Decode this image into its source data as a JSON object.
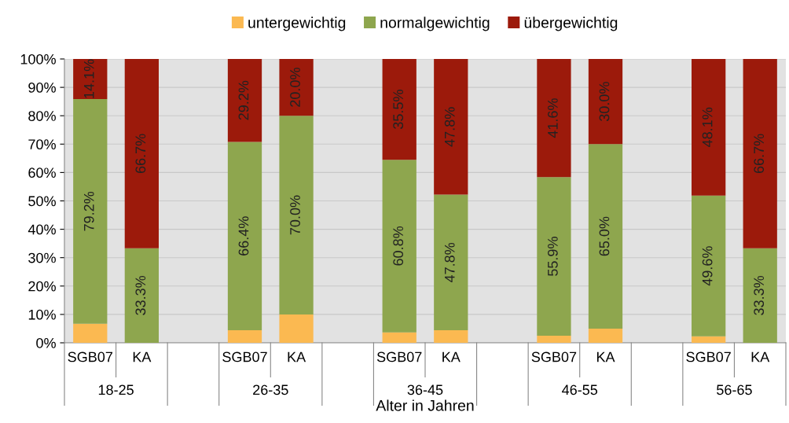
{
  "chart_data": {
    "type": "bar",
    "stacked": true,
    "xlabel": "Alter in Jahren",
    "categories": [
      "SGB07",
      "KA",
      null,
      "SGB07",
      "KA",
      null,
      "SGB07",
      "KA",
      null,
      "SGB07",
      "KA",
      null,
      "SGB07",
      "KA"
    ],
    "series": [
      {
        "name": "untergewichtig",
        "color": "#fbb951",
        "values": [
          6.7,
          0,
          null,
          4.4,
          10.0,
          null,
          3.7,
          4.4,
          null,
          2.5,
          5.0,
          null,
          2.3,
          0
        ],
        "value_labels": [
          null,
          null,
          null,
          null,
          null,
          null,
          null,
          null,
          null,
          null,
          null,
          null,
          null,
          null
        ]
      },
      {
        "name": "normalgewichtig",
        "color": "#8ea64e",
        "values": [
          79.2,
          33.3,
          null,
          66.4,
          70.0,
          null,
          60.8,
          47.8,
          null,
          55.9,
          65.0,
          null,
          49.6,
          33.3
        ],
        "value_labels": [
          "79.2%",
          "33.3%",
          null,
          "66.4%",
          "70.0%",
          null,
          "60.8%",
          "47.8%",
          null,
          "55.9%",
          "65.0%",
          null,
          "49.6%",
          "33.3%"
        ]
      },
      {
        "name": "übergewichtig",
        "color": "#9c1a0b",
        "values": [
          14.1,
          66.7,
          null,
          29.2,
          20.0,
          null,
          35.5,
          47.8,
          null,
          41.6,
          30.0,
          null,
          48.1,
          66.7
        ],
        "value_labels": [
          "14.1%",
          "66.7%",
          null,
          "29.2%",
          "20.0%",
          null,
          "35.5%",
          "47.8%",
          null,
          "41.6%",
          "30.0%",
          null,
          "48.1%",
          "66.7%"
        ]
      }
    ],
    "annotations": [
      "18-25",
      "26-35",
      "36-45",
      "46-55",
      "56-65"
    ],
    "ylim": [
      0,
      100
    ],
    "yticks": [
      {
        "value": 0,
        "label": "0%"
      },
      {
        "value": 10,
        "label": "10%"
      },
      {
        "value": 20,
        "label": "20%"
      },
      {
        "value": 30,
        "label": "30%"
      },
      {
        "value": 40,
        "label": "40%"
      },
      {
        "value": 50,
        "label": "50%"
      },
      {
        "value": 60,
        "label": "60%"
      },
      {
        "value": 70,
        "label": "70%"
      },
      {
        "value": 80,
        "label": "80%"
      },
      {
        "value": 90,
        "label": "90%"
      },
      {
        "value": 100,
        "label": "100%"
      }
    ],
    "grid": "y",
    "legend": "top"
  }
}
